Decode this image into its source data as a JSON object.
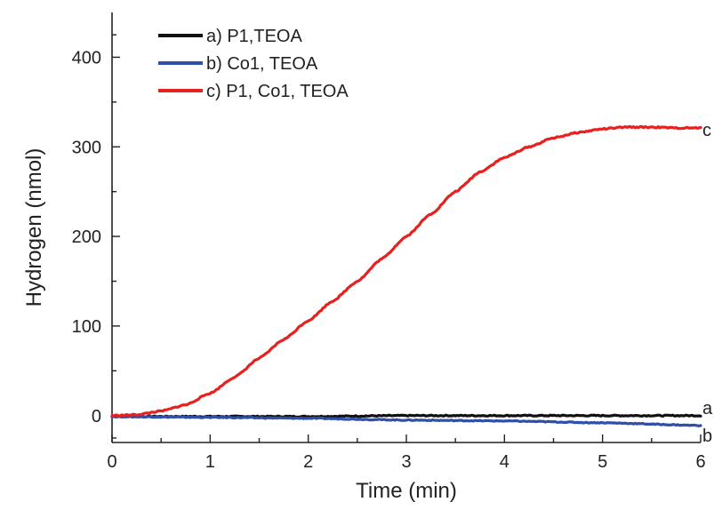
{
  "chart_data": {
    "type": "line",
    "title": "",
    "xlabel": "Time (min)",
    "ylabel": "Hydrogen (nmol)",
    "xlim": [
      0,
      6
    ],
    "ylim": [
      -30,
      450
    ],
    "xticks": [
      0,
      1,
      2,
      3,
      4,
      5,
      6
    ],
    "yticks": [
      0,
      100,
      200,
      300,
      400
    ],
    "grid": false,
    "legend_position": "top-left",
    "series": [
      {
        "name": "a) P1,TEOA",
        "end_label": "a",
        "color": "#111111",
        "x": [
          0,
          1,
          2,
          3,
          4,
          5,
          6
        ],
        "y": [
          -1,
          -1,
          -1,
          0,
          0,
          0,
          0
        ]
      },
      {
        "name": "b) Co1, TEOA",
        "end_label": "b",
        "color": "#2f4fa8",
        "x": [
          0,
          1,
          2,
          3,
          4,
          5,
          6
        ],
        "y": [
          -1,
          -2,
          -3,
          -5,
          -6,
          -8,
          -11
        ]
      },
      {
        "name": "c) P1, Co1, TEOA",
        "end_label": "c",
        "color": "#e8201e",
        "x": [
          0,
          0.25,
          0.5,
          0.75,
          1.0,
          1.25,
          1.5,
          1.75,
          2.0,
          2.25,
          2.5,
          2.75,
          3.0,
          3.25,
          3.5,
          3.75,
          4.0,
          4.25,
          4.5,
          4.75,
          5.0,
          5.25,
          5.5,
          5.75,
          6.0
        ],
        "y": [
          0,
          1,
          5,
          12,
          25,
          43,
          64,
          85,
          106,
          128,
          150,
          175,
          200,
          225,
          250,
          272,
          288,
          300,
          310,
          316,
          320,
          322,
          322,
          321,
          321
        ]
      }
    ]
  }
}
